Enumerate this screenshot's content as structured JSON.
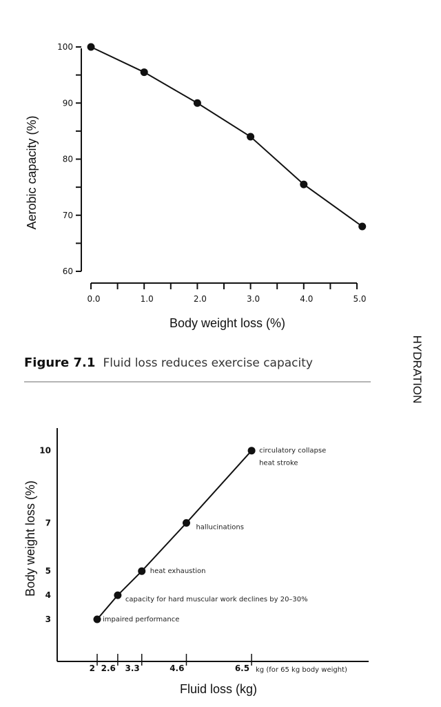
{
  "side_header": "HYDRATION",
  "figure1": {
    "caption_label": "Figure 7.1",
    "caption_text": "Fluid loss reduces exercise capacity"
  },
  "chart_data": [
    {
      "type": "line",
      "xlabel": "Body weight loss (%)",
      "ylabel": "Aerobic capacity (%)",
      "xlim": [
        0,
        5.0
      ],
      "ylim": [
        60,
        100
      ],
      "x_ticks": [
        "0.0",
        "1.0",
        "2.0",
        "3.0",
        "4.0",
        "5.0"
      ],
      "y_ticks": [
        "60",
        "70",
        "80",
        "90",
        "100"
      ],
      "grid": false,
      "x": [
        0.0,
        1.0,
        2.0,
        3.0,
        4.0,
        5.1
      ],
      "y": [
        100,
        95.5,
        90,
        84,
        75.5,
        68
      ]
    },
    {
      "type": "line",
      "xlabel": "Fluid loss (kg)",
      "ylabel": "Body weight loss (%)",
      "x_unit_note": "kg (for 65 kg body weight)",
      "x_ticks": [
        "2",
        "2.6",
        "3.3",
        "4.6",
        "6.5"
      ],
      "y_ticks": [
        "3",
        "4",
        "5",
        "7",
        "10"
      ],
      "grid": false,
      "x": [
        2,
        2.6,
        3.3,
        4.6,
        6.5
      ],
      "y": [
        3,
        4,
        5,
        7,
        10
      ],
      "annotations": [
        "impaired performance",
        "capacity for hard muscular work declines by 20–30%",
        "heat exhaustion",
        "hallucinations",
        "circulatory collapse",
        "heat stroke"
      ]
    }
  ]
}
